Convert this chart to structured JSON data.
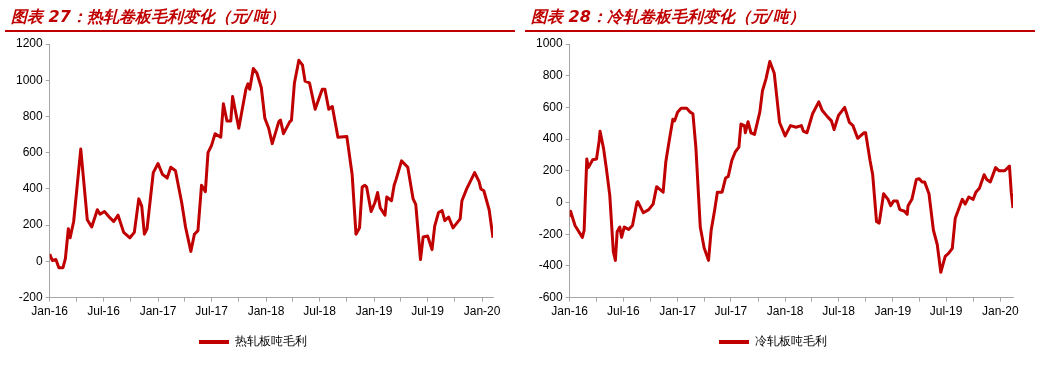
{
  "chart_data": [
    {
      "type": "line",
      "title": "图表 27：热轧卷板毛利变化（元/吨）",
      "legend": "bottom",
      "grid": false,
      "xlim": [
        "2016-01-01",
        "2020-02-07"
      ],
      "xticks": [
        {
          "value": "2016-01-01",
          "label": "Jan-16"
        },
        {
          "value": "2016-04-01",
          "label": null
        },
        {
          "value": "2016-07-01",
          "label": "Jul-16"
        },
        {
          "value": "2016-10-01",
          "label": null
        },
        {
          "value": "2017-01-01",
          "label": "Jan-17"
        },
        {
          "value": "2017-04-01",
          "label": null
        },
        {
          "value": "2017-07-01",
          "label": "Jul-17"
        },
        {
          "value": "2017-10-01",
          "label": null
        },
        {
          "value": "2018-01-01",
          "label": "Jan-18"
        },
        {
          "value": "2018-04-01",
          "label": null
        },
        {
          "value": "2018-07-01",
          "label": "Jul-18"
        },
        {
          "value": "2018-10-01",
          "label": null
        },
        {
          "value": "2019-01-01",
          "label": "Jan-19"
        },
        {
          "value": "2019-04-01",
          "label": null
        },
        {
          "value": "2019-07-01",
          "label": "Jul-19"
        },
        {
          "value": "2019-10-01",
          "label": null
        },
        {
          "value": "2020-01-01",
          "label": "Jan-20"
        }
      ],
      "ylim": [
        -200,
        1200
      ],
      "yticks": [
        -200,
        0,
        200,
        400,
        600,
        800,
        1000,
        1200
      ],
      "series": [
        {
          "name": "热轧板吨毛利",
          "color": "#c00000",
          "x": [
            "2016-01-01",
            "2016-01-10",
            "2016-01-22",
            "2016-02-01",
            "2016-02-15",
            "2016-02-23",
            "2016-03-04",
            "2016-03-10",
            "2016-03-22",
            "2016-04-15",
            "2016-05-07",
            "2016-05-22",
            "2016-06-10",
            "2016-06-19",
            "2016-07-04",
            "2016-07-23",
            "2016-08-04",
            "2016-08-19",
            "2016-09-07",
            "2016-09-28",
            "2016-10-13",
            "2016-10-28",
            "2016-11-07",
            "2016-11-16",
            "2016-11-25",
            "2016-12-16",
            "2017-01-01",
            "2017-01-16",
            "2017-02-01",
            "2017-02-13",
            "2017-03-01",
            "2017-03-22",
            "2017-04-04",
            "2017-04-22",
            "2017-05-04",
            "2017-05-16",
            "2017-05-28",
            "2017-06-10",
            "2017-06-19",
            "2017-07-01",
            "2017-07-13",
            "2017-08-01",
            "2017-08-10",
            "2017-08-22",
            "2017-09-04",
            "2017-09-10",
            "2017-10-01",
            "2017-10-25",
            "2017-11-01",
            "2017-11-07",
            "2017-11-19",
            "2017-12-01",
            "2017-12-16",
            "2017-12-28",
            "2018-01-10",
            "2018-01-22",
            "2018-02-13",
            "2018-02-19",
            "2018-03-01",
            "2018-03-22",
            "2018-03-28",
            "2018-04-07",
            "2018-04-22",
            "2018-05-04",
            "2018-05-13",
            "2018-05-28",
            "2018-06-16",
            "2018-07-10",
            "2018-07-19",
            "2018-08-01",
            "2018-08-13",
            "2018-09-01",
            "2018-10-01",
            "2018-10-19",
            "2018-11-01",
            "2018-11-13",
            "2018-11-22",
            "2018-12-01",
            "2018-12-07",
            "2018-12-22",
            "2019-01-04",
            "2019-01-13",
            "2019-01-22",
            "2019-02-07",
            "2019-02-13",
            "2019-03-01",
            "2019-03-10",
            "2019-03-16",
            "2019-04-04",
            "2019-04-25",
            "2019-05-13",
            "2019-05-22",
            "2019-06-07",
            "2019-06-16",
            "2019-07-01",
            "2019-07-16",
            "2019-07-25",
            "2019-08-07",
            "2019-08-19",
            "2019-08-28",
            "2019-09-10",
            "2019-09-25",
            "2019-10-19",
            "2019-10-25",
            "2019-11-10",
            "2019-12-07",
            "2019-12-22",
            "2019-12-28",
            "2020-01-07",
            "2020-01-25",
            "2020-02-07"
          ],
          "values": [
            40,
            5,
            10,
            -35,
            -35,
            15,
            180,
            130,
            220,
            620,
            230,
            190,
            285,
            260,
            275,
            240,
            220,
            255,
            160,
            130,
            160,
            345,
            305,
            150,
            180,
            490,
            540,
            480,
            460,
            520,
            500,
            325,
            190,
            55,
            150,
            170,
            420,
            385,
            600,
            640,
            705,
            685,
            870,
            775,
            775,
            910,
            735,
            950,
            980,
            950,
            1065,
            1040,
            960,
            790,
            735,
            650,
            770,
            780,
            705,
            770,
            780,
            985,
            1110,
            1085,
            995,
            985,
            840,
            950,
            950,
            840,
            855,
            685,
            690,
            480,
            150,
            185,
            410,
            420,
            410,
            275,
            325,
            380,
            295,
            255,
            355,
            335,
            420,
            450,
            555,
            520,
            345,
            315,
            10,
            135,
            140,
            65,
            195,
            270,
            280,
            225,
            245,
            185,
            235,
            335,
            400,
            490,
            440,
            400,
            390,
            285,
            130
          ]
        }
      ]
    },
    {
      "type": "line",
      "title": "图表 28：冷轧卷板毛利变化（元/吨）",
      "legend": "bottom",
      "grid": false,
      "xlim": [
        "2016-01-01",
        "2020-02-13"
      ],
      "xticks": [
        {
          "value": "2016-01-01",
          "label": "Jan-16"
        },
        {
          "value": "2016-04-01",
          "label": null
        },
        {
          "value": "2016-07-01",
          "label": "Jul-16"
        },
        {
          "value": "2016-10-01",
          "label": null
        },
        {
          "value": "2017-01-01",
          "label": "Jan-17"
        },
        {
          "value": "2017-04-01",
          "label": null
        },
        {
          "value": "2017-07-01",
          "label": "Jul-17"
        },
        {
          "value": "2017-10-01",
          "label": null
        },
        {
          "value": "2018-01-01",
          "label": "Jan-18"
        },
        {
          "value": "2018-04-01",
          "label": null
        },
        {
          "value": "2018-07-01",
          "label": "Jul-18"
        },
        {
          "value": "2018-10-01",
          "label": null
        },
        {
          "value": "2019-01-01",
          "label": "Jan-19"
        },
        {
          "value": "2019-04-01",
          "label": null
        },
        {
          "value": "2019-07-01",
          "label": "Jul-19"
        },
        {
          "value": "2019-10-01",
          "label": null
        },
        {
          "value": "2020-01-01",
          "label": "Jan-20"
        }
      ],
      "ylim": [
        -600,
        1000
      ],
      "yticks": [
        -600,
        -400,
        -200,
        0,
        200,
        400,
        600,
        800,
        1000
      ],
      "series": [
        {
          "name": "冷轧板吨毛利",
          "color": "#c00000",
          "x": [
            "2016-01-01",
            "2016-01-04",
            "2016-01-19",
            "2016-02-13",
            "2016-02-19",
            "2016-02-28",
            "2016-03-04",
            "2016-03-19",
            "2016-04-01",
            "2016-04-10",
            "2016-04-13",
            "2016-04-25",
            "2016-05-04",
            "2016-05-16",
            "2016-05-28",
            "2016-06-04",
            "2016-06-10",
            "2016-06-19",
            "2016-06-25",
            "2016-07-04",
            "2016-07-19",
            "2016-08-01",
            "2016-08-16",
            "2016-08-19",
            "2016-09-07",
            "2016-09-25",
            "2016-10-10",
            "2016-10-22",
            "2016-11-13",
            "2016-11-22",
            "2016-12-04",
            "2016-12-16",
            "2016-12-22",
            "2017-01-01",
            "2017-01-13",
            "2017-02-01",
            "2017-02-13",
            "2017-02-22",
            "2017-03-04",
            "2017-03-19",
            "2017-04-01",
            "2017-04-16",
            "2017-04-25",
            "2017-05-07",
            "2017-05-16",
            "2017-06-01",
            "2017-06-13",
            "2017-06-22",
            "2017-07-04",
            "2017-07-16",
            "2017-07-28",
            "2017-08-04",
            "2017-08-16",
            "2017-08-19",
            "2017-08-28",
            "2017-09-07",
            "2017-09-19",
            "2017-10-07",
            "2017-10-16",
            "2017-10-28",
            "2017-11-10",
            "2017-11-25",
            "2017-12-13",
            "2018-01-01",
            "2018-01-19",
            "2018-02-07",
            "2018-02-25",
            "2018-03-04",
            "2018-03-16",
            "2018-04-04",
            "2018-04-25",
            "2018-05-07",
            "2018-05-25",
            "2018-06-07",
            "2018-06-16",
            "2018-07-01",
            "2018-07-22",
            "2018-08-07",
            "2018-08-19",
            "2018-09-04",
            "2018-09-25",
            "2018-10-01",
            "2018-10-16",
            "2018-10-25",
            "2018-11-07",
            "2018-11-16",
            "2018-12-01",
            "2018-12-16",
            "2018-12-25",
            "2019-01-04",
            "2019-01-16",
            "2019-01-25",
            "2019-02-10",
            "2019-02-19",
            "2019-02-22",
            "2019-03-07",
            "2019-03-22",
            "2019-04-01",
            "2019-04-10",
            "2019-04-19",
            "2019-05-04",
            "2019-05-19",
            "2019-06-01",
            "2019-06-13",
            "2019-06-28",
            "2019-07-10",
            "2019-07-22",
            "2019-08-01",
            "2019-08-10",
            "2019-08-25",
            "2019-09-04",
            "2019-09-16",
            "2019-10-01",
            "2019-10-10",
            "2019-10-22",
            "2019-11-07",
            "2019-11-16",
            "2019-11-28",
            "2019-12-16",
            "2019-12-28",
            "2020-01-16",
            "2020-02-01",
            "2020-02-07",
            "2020-02-13"
          ],
          "values": [
            -90,
            -55,
            -145,
            -220,
            -175,
            275,
            220,
            270,
            275,
            390,
            450,
            340,
            220,
            45,
            -310,
            -365,
            -185,
            -155,
            -220,
            -155,
            -170,
            -145,
            0,
            5,
            -65,
            -45,
            -10,
            100,
            65,
            255,
            395,
            525,
            515,
            570,
            595,
            595,
            570,
            560,
            350,
            -155,
            -285,
            -365,
            -175,
            -45,
            65,
            65,
            155,
            165,
            265,
            320,
            350,
            495,
            485,
            440,
            510,
            440,
            430,
            570,
            705,
            780,
            890,
            815,
            505,
            420,
            485,
            475,
            485,
            450,
            440,
            560,
            635,
            580,
            540,
            515,
            460,
            550,
            600,
            505,
            485,
            405,
            440,
            440,
            265,
            175,
            -120,
            -130,
            55,
            20,
            -20,
            10,
            10,
            -45,
            -55,
            -75,
            -20,
            20,
            145,
            150,
            130,
            130,
            55,
            -175,
            -265,
            -440,
            -340,
            -320,
            -290,
            -100,
            -55,
            20,
            -10,
            35,
            20,
            65,
            90,
            175,
            145,
            130,
            220,
            200,
            200,
            230,
            65,
            -35
          ]
        }
      ]
    }
  ]
}
